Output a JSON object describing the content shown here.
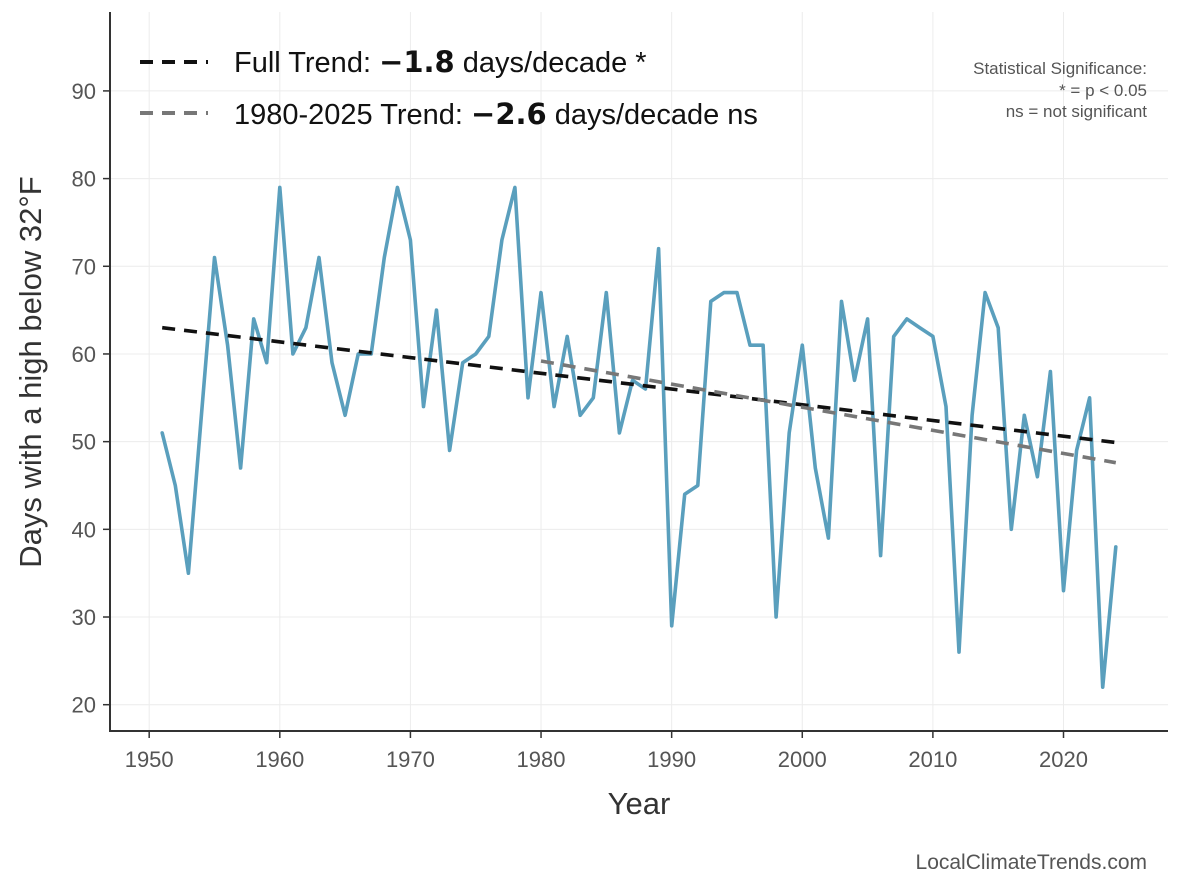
{
  "chart_data": {
    "type": "line",
    "xlabel": "Year",
    "ylabel": "Days with a high below 32°F",
    "xlim": [
      1947,
      2028
    ],
    "ylim": [
      17,
      99
    ],
    "x_ticks": [
      1950,
      1960,
      1970,
      1980,
      1990,
      2000,
      2010,
      2020
    ],
    "y_ticks": [
      20,
      30,
      40,
      50,
      60,
      70,
      80,
      90
    ],
    "grid": true,
    "legend_placement": "top-left",
    "series": [
      {
        "color": "#5a9fbd",
        "x": [
          1951,
          1952,
          1953,
          1954,
          1955,
          1956,
          1957,
          1958,
          1959,
          1960,
          1961,
          1962,
          1963,
          1964,
          1965,
          1966,
          1967,
          1968,
          1969,
          1970,
          1971,
          1972,
          1973,
          1974,
          1975,
          1976,
          1977,
          1978,
          1979,
          1980,
          1981,
          1982,
          1983,
          1984,
          1985,
          1986,
          1987,
          1988,
          1989,
          1990,
          1991,
          1992,
          1993,
          1994,
          1995,
          1996,
          1997,
          1998,
          1999,
          2000,
          2001,
          2002,
          2003,
          2004,
          2005,
          2006,
          2007,
          2008,
          2009,
          2010,
          2011,
          2012,
          2013,
          2014,
          2015,
          2016,
          2017,
          2018,
          2019,
          2020,
          2021,
          2022,
          2023,
          2024
        ],
        "values": [
          51,
          45,
          35,
          53,
          71,
          61,
          47,
          64,
          59,
          79,
          60,
          63,
          71,
          59,
          53,
          60,
          60,
          71,
          79,
          73,
          54,
          65,
          49,
          59,
          60,
          62,
          73,
          79,
          55,
          67,
          54,
          62,
          53,
          55,
          67,
          51,
          57,
          56,
          72,
          29,
          44,
          45,
          66,
          67,
          67,
          61,
          61,
          30,
          51,
          61,
          47,
          39,
          66,
          57,
          64,
          37,
          62,
          64,
          63,
          62,
          54,
          26,
          53,
          67,
          63,
          40,
          53,
          46,
          58,
          33,
          49,
          55,
          22,
          38
        ]
      },
      {
        "name": "Full Trend",
        "style": "dashed",
        "color": "#111111",
        "x": [
          1951,
          2024
        ],
        "values": [
          63.0,
          49.9
        ]
      },
      {
        "name": "1980-2025 Trend",
        "style": "dashed",
        "color": "#777777",
        "x": [
          1980,
          2024
        ],
        "values": [
          59.2,
          47.6
        ]
      }
    ],
    "legend": [
      {
        "prefix": "Full Trend: ",
        "value": "−1.8",
        "suffix": " days/decade *",
        "color": "#111111"
      },
      {
        "prefix": "1980-2025 Trend: ",
        "value": "−2.6",
        "suffix": " days/decade ns",
        "color": "#777777"
      }
    ],
    "annotations": {
      "significance_title": "Statistical Significance:",
      "significance_line1": "* = p < 0.05",
      "significance_line2": "ns = not significant",
      "source": "LocalClimateTrends.com"
    }
  }
}
